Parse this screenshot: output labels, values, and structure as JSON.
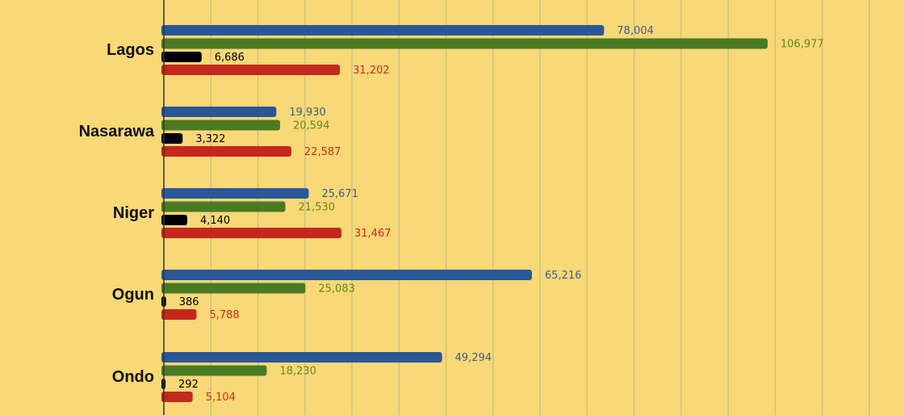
{
  "chart_data": {
    "type": "bar",
    "orientation": "horizontal",
    "categories": [
      "Lagos",
      "Nasarawa",
      "Niger",
      "Ogun",
      "Ondo"
    ],
    "series": [
      {
        "color": "#2b5797",
        "label_color": "#3b5f8a",
        "values": [
          78004,
          19930,
          25671,
          65216,
          49294
        ]
      },
      {
        "color": "#4a7a23",
        "label_color": "#5f8a1c",
        "values": [
          106977,
          20594,
          21530,
          25083,
          18230
        ]
      },
      {
        "color": "#000000",
        "label_color": "#000000",
        "values": [
          6686,
          3322,
          4140,
          386,
          292
        ]
      },
      {
        "color": "#c4281d",
        "label_color": "#cc2a1a",
        "values": [
          31202,
          22587,
          31467,
          5788,
          5104
        ]
      }
    ],
    "value_labels": [
      [
        "78,004",
        "106,977",
        "6,686",
        "31,202"
      ],
      [
        "19,930",
        "20,594",
        "3,322",
        "22,587"
      ],
      [
        "25,671",
        "21,530",
        "4,140",
        "31,467"
      ],
      [
        "65,216",
        "25,083",
        "386",
        "5,788"
      ],
      [
        "49,294",
        "18,230",
        "292",
        "5,104"
      ]
    ],
    "xlim": [
      0,
      120000
    ],
    "grid_step": 8333.33,
    "grid": true,
    "legend": false,
    "title": "",
    "xlabel": "",
    "ylabel": "",
    "colors": {
      "background": "#f9d877",
      "gridline": "#c8b98a",
      "axis": "#333333"
    }
  }
}
